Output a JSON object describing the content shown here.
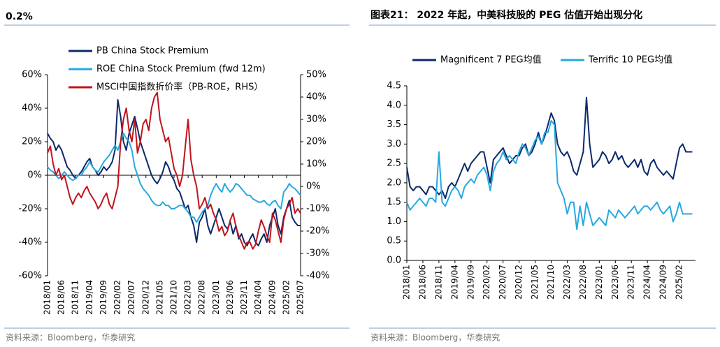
{
  "chart_data": [
    {
      "type": "line",
      "title": "0.2%",
      "source": "资料来源：Bloomberg，华泰研究",
      "x": [
        "2018/01",
        null,
        null,
        null,
        null,
        "2018/06",
        null,
        null,
        null,
        null,
        "2018/11",
        null,
        null,
        null,
        null,
        "2019/04",
        null,
        null,
        null,
        null,
        "2019/09",
        null,
        null,
        null,
        null,
        "2020/02",
        null,
        null,
        null,
        null,
        "2020/07",
        null,
        null,
        null,
        null,
        "2020/12",
        null,
        null,
        null,
        null,
        "2021/05",
        null,
        null,
        null,
        null,
        "2021/10",
        null,
        null,
        null,
        null,
        "2022/03",
        null,
        null,
        null,
        null,
        "2022/08",
        null,
        null,
        null,
        null,
        "2023/01",
        null,
        null,
        null,
        null,
        "2023/06",
        null,
        null,
        null,
        null,
        "2023/11",
        null,
        null,
        null,
        null,
        "2024/04",
        null,
        null,
        null,
        null,
        "2024/09",
        null,
        null,
        null,
        null,
        "2025/02",
        null,
        null,
        null,
        null,
        "2025/07"
      ],
      "ylim": [
        -60,
        60
      ],
      "yticks": [
        {
          "value": -60,
          "label": "-60%"
        },
        {
          "value": -40,
          "label": "-40%"
        },
        {
          "value": -20,
          "label": "-20%"
        },
        {
          "value": 0,
          "label": "0%"
        },
        {
          "value": 20,
          "label": "20%"
        },
        {
          "value": 40,
          "label": "40%"
        },
        {
          "value": 60,
          "label": "60%"
        }
      ],
      "y2lim": [
        -40,
        50
      ],
      "y2ticks": [
        {
          "value": -40,
          "label": "-40%"
        },
        {
          "value": -30,
          "label": "-30%"
        },
        {
          "value": -20,
          "label": "-20%"
        },
        {
          "value": -10,
          "label": "-10%"
        },
        {
          "value": 0,
          "label": "0%"
        },
        {
          "value": 10,
          "label": "10%"
        },
        {
          "value": 20,
          "label": "20%"
        },
        {
          "value": 30,
          "label": "30%"
        },
        {
          "value": 40,
          "label": "40%"
        },
        {
          "value": 50,
          "label": "50%"
        }
      ],
      "series": [
        {
          "name": "PB China Stock Premium",
          "color": "#0d2a6b",
          "values": [
            25,
            22,
            20,
            15,
            18,
            15,
            10,
            5,
            3,
            0,
            -2,
            0,
            2,
            5,
            8,
            10,
            5,
            3,
            0,
            2,
            5,
            3,
            5,
            8,
            15,
            45,
            35,
            20,
            15,
            25,
            30,
            35,
            28,
            20,
            15,
            10,
            5,
            0,
            -3,
            -5,
            -2,
            2,
            8,
            5,
            0,
            -3,
            -8,
            -10,
            -15,
            -20,
            -18,
            -25,
            -30,
            -40,
            -28,
            -25,
            -20,
            -30,
            -35,
            -30,
            -25,
            -20,
            -25,
            -30,
            -32,
            -28,
            -35,
            -30,
            -38,
            -35,
            -40,
            -42,
            -38,
            -35,
            -40,
            -42,
            -38,
            -35,
            -40,
            -30,
            -25,
            -20,
            -30,
            -35,
            -25,
            -20,
            -15,
            -25,
            -28,
            -30,
            -30
          ]
        },
        {
          "name": "ROE China Stock Premium (fwd 12m)",
          "color": "#27a9e1",
          "values": [
            5,
            3,
            2,
            0,
            -2,
            0,
            2,
            0,
            -2,
            -3,
            -2,
            0,
            0,
            3,
            5,
            8,
            5,
            3,
            2,
            5,
            8,
            10,
            12,
            15,
            18,
            15,
            20,
            25,
            22,
            20,
            15,
            5,
            0,
            -5,
            -8,
            -10,
            -12,
            -15,
            -17,
            -18,
            -18,
            -16,
            -18,
            -18,
            -20,
            -20,
            -19,
            -18,
            -18,
            -20,
            -22,
            -25,
            -25,
            -28,
            -25,
            -22,
            -20,
            -18,
            -12,
            -8,
            -5,
            -8,
            -10,
            -5,
            -8,
            -10,
            -8,
            -5,
            -6,
            -8,
            -10,
            -12,
            -12,
            -14,
            -15,
            -16,
            -16,
            -15,
            -17,
            -18,
            -16,
            -15,
            -18,
            -20,
            -10,
            -8,
            -5,
            -7,
            -8,
            -10,
            -12
          ]
        },
        {
          "name": "MSCI中国指数折价率（PB-ROE，RHS）",
          "color": "#c0141c",
          "axis": "y2",
          "values": [
            15,
            18,
            10,
            5,
            8,
            3,
            5,
            0,
            -5,
            -8,
            -5,
            -3,
            -5,
            -2,
            0,
            -3,
            -5,
            -7,
            -10,
            -8,
            -5,
            -3,
            -8,
            -10,
            -5,
            0,
            20,
            30,
            35,
            25,
            20,
            30,
            15,
            20,
            28,
            30,
            25,
            35,
            40,
            42,
            30,
            25,
            20,
            22,
            15,
            8,
            5,
            0,
            5,
            18,
            30,
            12,
            5,
            0,
            -10,
            -8,
            -5,
            -10,
            -8,
            -12,
            -15,
            -20,
            -18,
            -22,
            -20,
            -15,
            -12,
            -18,
            -22,
            -25,
            -28,
            -25,
            -25,
            -28,
            -26,
            -20,
            -15,
            -18,
            -22,
            -25,
            -12,
            -15,
            -20,
            -25,
            -15,
            -10,
            -8,
            -5,
            -12,
            -10,
            -12
          ]
        }
      ]
    },
    {
      "type": "line",
      "title": "图表21： 2022 年起，中美科技股的 PEG 估值开始出现分化",
      "source": "资料来源：Bloomberg，华泰研究",
      "x": [
        "2018/01",
        null,
        null,
        null,
        null,
        "2018/06",
        null,
        null,
        null,
        null,
        "2018/11",
        null,
        null,
        null,
        null,
        "2019/04",
        null,
        null,
        null,
        null,
        "2019/09",
        null,
        null,
        null,
        null,
        "2020/02",
        null,
        null,
        null,
        null,
        "2020/07",
        null,
        null,
        null,
        null,
        "2020/12",
        null,
        null,
        null,
        null,
        "2021/05",
        null,
        null,
        null,
        null,
        "2021/10",
        null,
        null,
        null,
        null,
        "2022/03",
        null,
        null,
        null,
        null,
        "2022/08",
        null,
        null,
        null,
        null,
        "2023/01",
        null,
        null,
        null,
        null,
        "2023/06",
        null,
        null,
        null,
        null,
        "2023/11",
        null,
        null,
        null,
        null,
        "2024/04",
        null,
        null,
        null,
        null,
        "2024/09",
        null,
        null,
        null,
        null,
        "2025/02",
        null,
        null,
        null,
        null,
        null
      ],
      "ylim": [
        0,
        4.5
      ],
      "yticks": [
        {
          "value": 0,
          "label": "0.0"
        },
        {
          "value": 0.5,
          "label": "0.5"
        },
        {
          "value": 1,
          "label": "1.0"
        },
        {
          "value": 1.5,
          "label": "1.5"
        },
        {
          "value": 2,
          "label": "2.0"
        },
        {
          "value": 2.5,
          "label": "2.5"
        },
        {
          "value": 3,
          "label": "3.0"
        },
        {
          "value": 3.5,
          "label": "3.5"
        },
        {
          "value": 4,
          "label": "4.0"
        },
        {
          "value": 4.5,
          "label": "4.5"
        }
      ],
      "series": [
        {
          "name": "Magnificent 7 PEG均值",
          "color": "#0d2a6b",
          "values": [
            2.4,
            1.9,
            1.8,
            1.9,
            1.9,
            1.8,
            1.7,
            1.9,
            1.9,
            1.8,
            1.7,
            1.8,
            1.6,
            1.9,
            2.0,
            1.9,
            2.1,
            2.3,
            2.5,
            2.3,
            2.5,
            2.6,
            2.7,
            2.8,
            2.8,
            2.4,
            2.0,
            2.6,
            2.7,
            2.8,
            2.9,
            2.7,
            2.5,
            2.6,
            2.7,
            2.7,
            2.9,
            3.0,
            2.7,
            2.8,
            3.0,
            3.3,
            3.0,
            3.2,
            3.5,
            3.8,
            3.6,
            3.0,
            2.8,
            2.7,
            2.8,
            2.6,
            2.3,
            2.2,
            2.5,
            2.8,
            4.2,
            3.0,
            2.4,
            2.5,
            2.6,
            2.8,
            2.7,
            2.5,
            2.6,
            2.8,
            2.6,
            2.7,
            2.5,
            2.4,
            2.5,
            2.6,
            2.4,
            2.6,
            2.3,
            2.2,
            2.5,
            2.6,
            2.4,
            2.3,
            2.2,
            2.3,
            2.2,
            2.1,
            2.5,
            2.9,
            3.0,
            2.8,
            2.8,
            2.8,
            null
          ]
        },
        {
          "name": "Terrific 10 PEG均值",
          "color": "#27a9e1",
          "values": [
            1.5,
            1.3,
            1.4,
            1.5,
            1.6,
            1.5,
            1.4,
            1.6,
            1.6,
            1.5,
            2.8,
            1.5,
            1.4,
            1.6,
            1.8,
            1.9,
            1.8,
            1.6,
            1.9,
            2.0,
            2.1,
            2.0,
            2.2,
            2.3,
            2.4,
            2.2,
            1.8,
            2.3,
            2.5,
            2.6,
            2.8,
            2.6,
            2.7,
            2.6,
            2.5,
            2.8,
            3.0,
            2.9,
            2.7,
            2.9,
            3.1,
            3.2,
            3.0,
            3.3,
            3.3,
            3.6,
            3.5,
            2.0,
            1.8,
            1.6,
            1.2,
            1.5,
            1.5,
            0.8,
            1.4,
            0.9,
            1.5,
            1.2,
            0.9,
            1.0,
            1.1,
            1.0,
            0.9,
            1.3,
            1.2,
            1.1,
            1.3,
            1.2,
            1.1,
            1.2,
            1.3,
            1.4,
            1.2,
            1.3,
            1.4,
            1.4,
            1.3,
            1.4,
            1.5,
            1.3,
            1.2,
            1.3,
            1.4,
            1.0,
            1.2,
            1.5,
            1.2,
            1.2,
            1.2,
            1.2,
            null
          ]
        }
      ]
    }
  ]
}
